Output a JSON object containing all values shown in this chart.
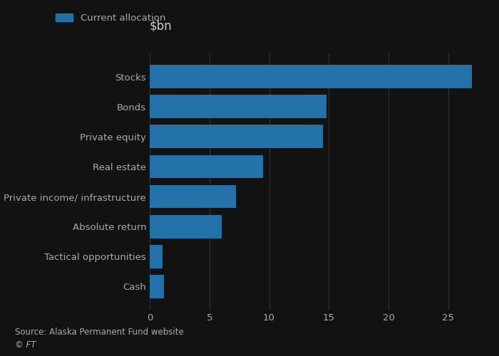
{
  "title": "$bn",
  "legend_label": "Current allocation",
  "bar_color": "#2271a8",
  "categories": [
    "Cash",
    "Tactical opportunities",
    "Absolute return",
    "Private income/ infrastructure",
    "Real estate",
    "Private equity",
    "Bonds",
    "Stocks"
  ],
  "values": [
    1.2,
    1.1,
    6.0,
    7.2,
    9.5,
    14.5,
    14.8,
    27.0
  ],
  "xlim": [
    0,
    28
  ],
  "xticks": [
    0,
    5,
    10,
    15,
    20,
    25
  ],
  "source_text": "Source: Alaska Permanent Fund website",
  "ft_text": "© FT",
  "background_color": "#121212",
  "label_color": "#aaaaaa",
  "title_color": "#cccccc",
  "grid_color": "#333333",
  "title_fontsize": 12,
  "label_fontsize": 9.5,
  "tick_fontsize": 9.5,
  "source_fontsize": 8.5,
  "bar_height": 0.78
}
